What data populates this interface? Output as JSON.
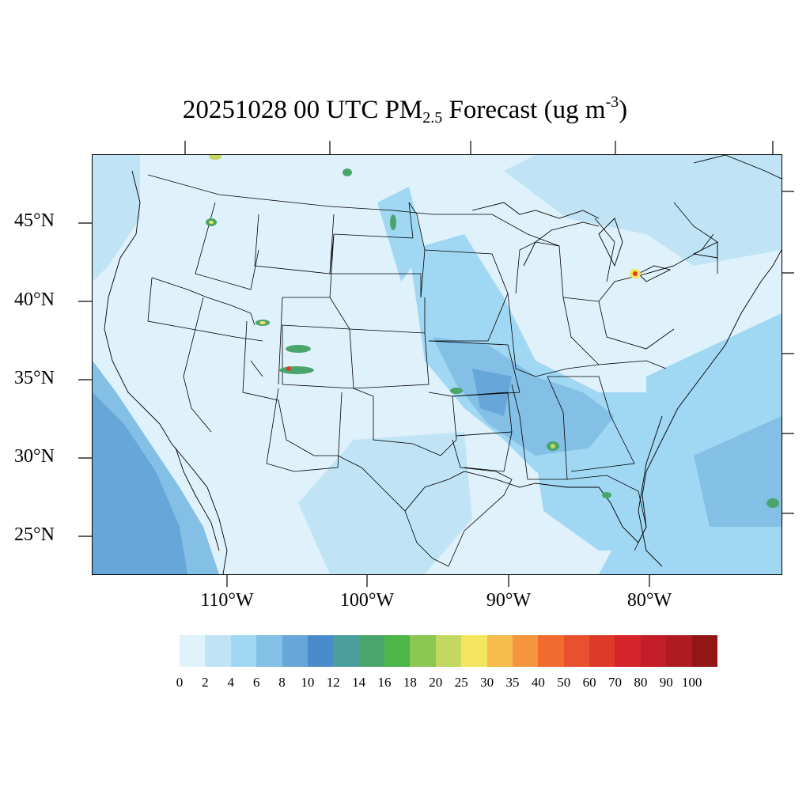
{
  "title": {
    "prefix": "20251028 00 UTC PM",
    "sub": "2.5",
    "mid": " Forecast (ug m",
    "sup": "-3",
    "suffix": ")"
  },
  "lat_labels": [
    "45°N",
    "40°N",
    "35°N",
    "30°N",
    "25°N"
  ],
  "lon_labels": [
    "110°W",
    "100°W",
    "90°W",
    "80°W"
  ],
  "colorbar": {
    "colors": [
      "#e0f3fa",
      "#c0e4f6",
      "#a0d8f3",
      "#84bfe6",
      "#66a6d8",
      "#4a8ccb",
      "#4b9f9c",
      "#4aa56c",
      "#4cb648",
      "#8cc653",
      "#c4d760",
      "#f4e55e",
      "#f5bb4d",
      "#f5963f",
      "#f26b2e",
      "#e8512d",
      "#de3a2a",
      "#d42329",
      "#c21e27",
      "#b01b22",
      "#931616"
    ],
    "labels": [
      "0",
      "2",
      "4",
      "6",
      "8",
      "10",
      "12",
      "14",
      "16",
      "18",
      "20",
      "25",
      "30",
      "35",
      "40",
      "50",
      "60",
      "70",
      "80",
      "90",
      "100"
    ]
  },
  "map": {
    "background": "#dff1fb",
    "land_light": "#dff1fb",
    "level4": "#c0e4f6",
    "level6": "#a0d8f3",
    "level8": "#84bfe6",
    "level10": "#66a6d8",
    "hotspot_colors": [
      "#4aa56c",
      "#c4d760",
      "#f4e55e",
      "#de3a2a"
    ]
  }
}
